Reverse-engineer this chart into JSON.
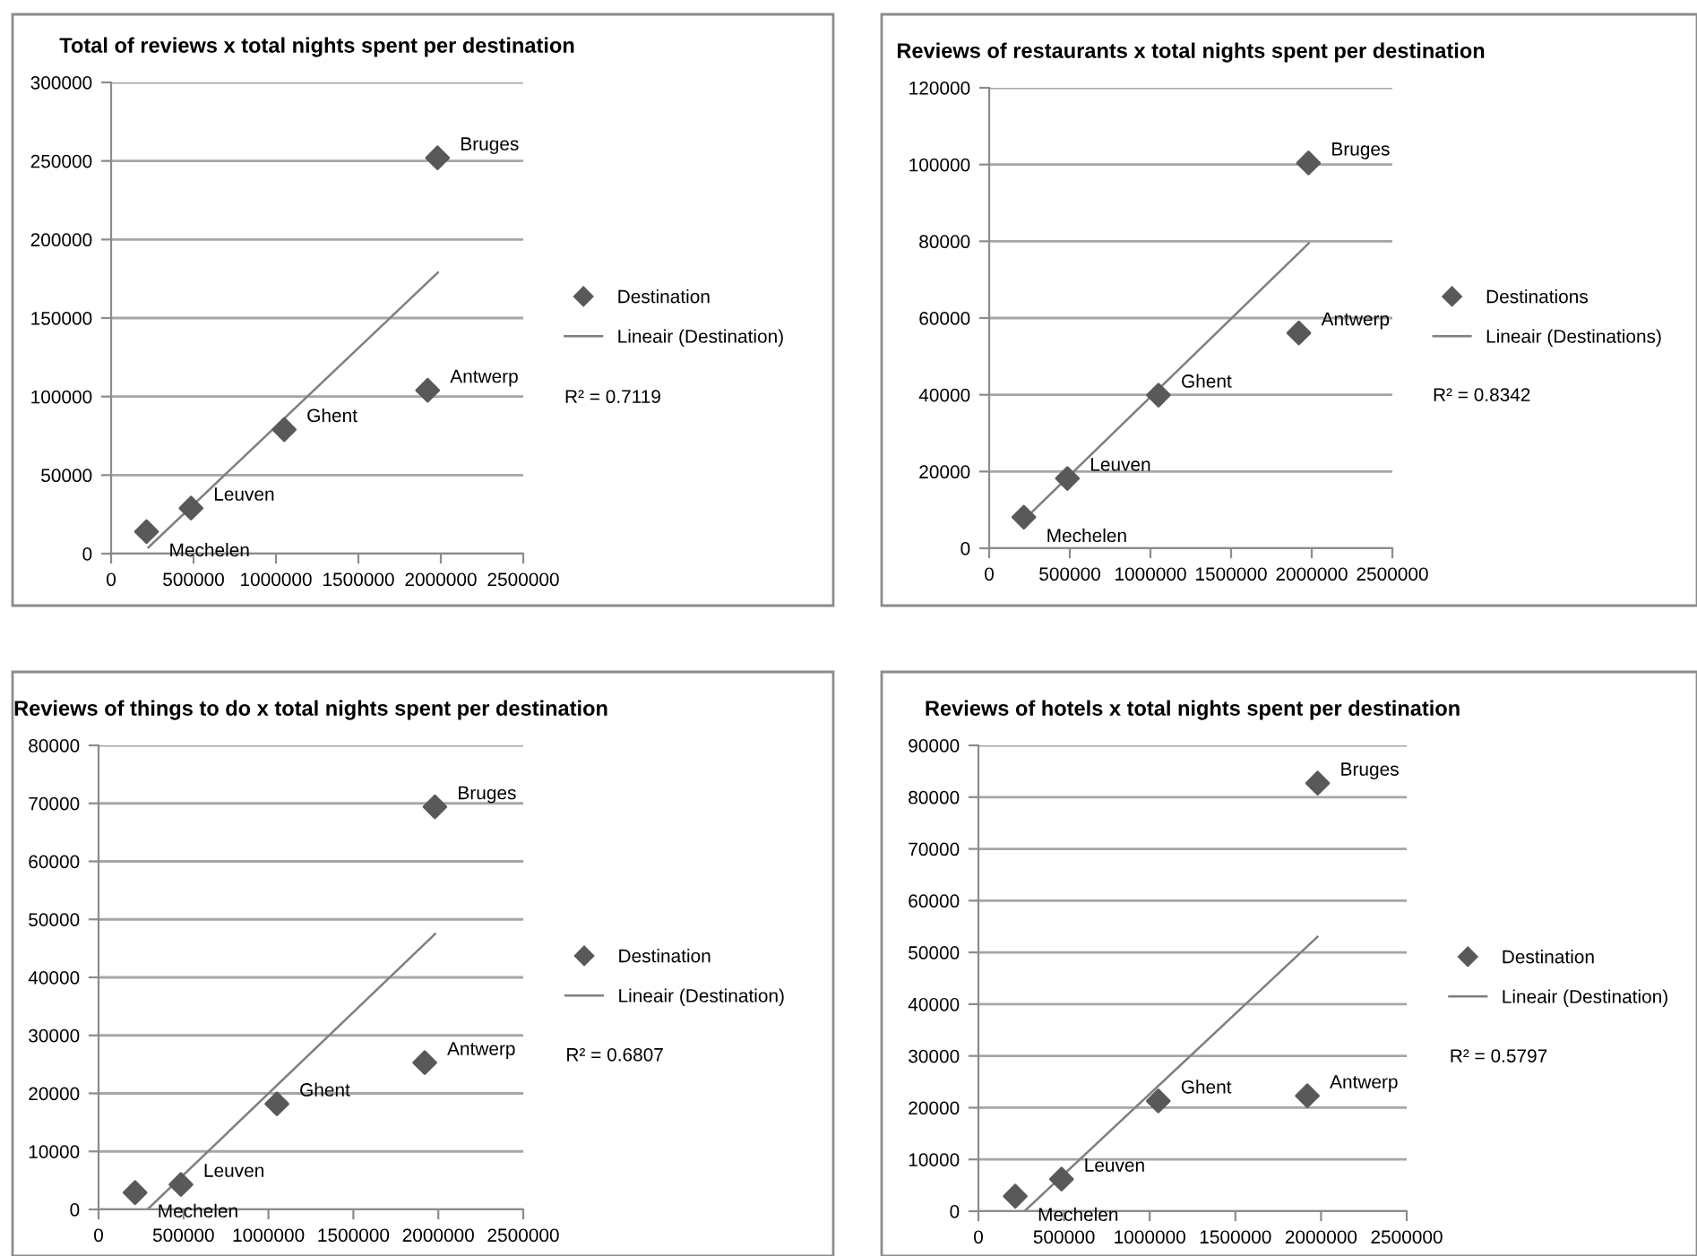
{
  "chart_data": [
    {
      "type": "scatter",
      "title": "Total of reviews x total nights spent per destination",
      "xlim": [
        0,
        2500000
      ],
      "xticks": [
        0,
        500000,
        1000000,
        1500000,
        2000000,
        2500000
      ],
      "ylim": [
        0,
        300000
      ],
      "yticks": [
        0,
        50000,
        100000,
        150000,
        200000,
        250000,
        300000
      ],
      "grid": "y",
      "legend": "right",
      "marker": "diamond",
      "series": [
        {
          "name": "Destination",
          "color": "#595959",
          "x": [
            215000,
            485000,
            1050000,
            1920000,
            1980000
          ],
          "values": [
            14000,
            29000,
            79000,
            104000,
            252000
          ]
        },
        {
          "name": "Lineair (Destination)",
          "type": "line",
          "marker": "none",
          "color": "#7f7f7f",
          "x": [
            227000,
            1982000
          ],
          "values": [
            4000,
            179000
          ]
        }
      ],
      "annotations": [
        {
          "text": "Mechelen",
          "x": 215000,
          "y": 14000
        },
        {
          "text": "Leuven",
          "x": 485000,
          "y": 29000
        },
        {
          "text": "Ghent",
          "x": 1050000,
          "y": 79000
        },
        {
          "text": "Antwerp",
          "x": 1920000,
          "y": 104000
        },
        {
          "text": "Bruges",
          "x": 1980000,
          "y": 252000
        },
        "R² = 0.7119"
      ]
    },
    {
      "type": "scatter",
      "title": "Reviews of restaurants x total nights spent per destination",
      "xlim": [
        0,
        2500000
      ],
      "xticks": [
        0,
        500000,
        1000000,
        1500000,
        2000000,
        2500000
      ],
      "ylim": [
        0,
        120000
      ],
      "yticks": [
        0,
        20000,
        40000,
        60000,
        80000,
        100000,
        120000
      ],
      "grid": "y",
      "legend": "right",
      "marker": "diamond",
      "series": [
        {
          "name": "Destinations",
          "color": "#595959",
          "x": [
            215000,
            485000,
            1050000,
            1920000,
            1980000
          ],
          "values": [
            8100,
            18200,
            39900,
            56100,
            100400
          ]
        },
        {
          "name": "Lineair (Destinations)",
          "type": "line",
          "marker": "none",
          "color": "#7f7f7f",
          "x": [
            252000,
            1982000
          ],
          "values": [
            8900,
            79500
          ]
        }
      ],
      "annotations": [
        {
          "text": "Mechelen",
          "x": 215000,
          "y": 8100
        },
        {
          "text": "Leuven",
          "x": 485000,
          "y": 18200
        },
        {
          "text": "Ghent",
          "x": 1050000,
          "y": 39900
        },
        {
          "text": "Antwerp",
          "x": 1920000,
          "y": 56100
        },
        {
          "text": "Bruges",
          "x": 1980000,
          "y": 100400
        },
        "R² = 0.8342"
      ]
    },
    {
      "type": "scatter",
      "title": "Reviews of things to do x total nights spent per destination",
      "xlim": [
        0,
        2500000
      ],
      "xticks": [
        0,
        500000,
        1000000,
        1500000,
        2000000,
        2500000
      ],
      "ylim": [
        0,
        80000
      ],
      "yticks": [
        0,
        10000,
        20000,
        30000,
        40000,
        50000,
        60000,
        70000,
        80000
      ],
      "grid": "y",
      "legend": "right",
      "marker": "diamond",
      "series": [
        {
          "name": "Destination",
          "color": "#595959",
          "x": [
            215000,
            485000,
            1050000,
            1920000,
            1980000
          ],
          "values": [
            2900,
            4300,
            18200,
            25300,
            69400
          ]
        },
        {
          "name": "Lineair (Destination)",
          "type": "line",
          "marker": "none",
          "color": "#7f7f7f",
          "x": [
            288000,
            1981000
          ],
          "values": [
            0,
            47500
          ]
        }
      ],
      "annotations": [
        {
          "text": "Mechelen",
          "x": 215000,
          "y": 2900
        },
        {
          "text": "Leuven",
          "x": 485000,
          "y": 4300
        },
        {
          "text": "Ghent",
          "x": 1050000,
          "y": 18200
        },
        {
          "text": "Antwerp",
          "x": 1920000,
          "y": 25300
        },
        {
          "text": "Bruges",
          "x": 1980000,
          "y": 69400
        },
        "R² = 0.6807"
      ]
    },
    {
      "type": "scatter",
      "title": "Reviews of hotels x total nights spent per destination",
      "xlim": [
        0,
        2500000
      ],
      "xticks": [
        0,
        500000,
        1000000,
        1500000,
        2000000,
        2500000
      ],
      "ylim": [
        0,
        90000
      ],
      "yticks": [
        0,
        10000,
        20000,
        30000,
        40000,
        50000,
        60000,
        70000,
        80000,
        90000
      ],
      "grid": "y",
      "legend": "right",
      "marker": "diamond",
      "series": [
        {
          "name": "Destination",
          "color": "#595959",
          "x": [
            215000,
            485000,
            1050000,
            1920000,
            1980000
          ],
          "values": [
            2900,
            6200,
            21300,
            22300,
            82700
          ]
        },
        {
          "name": "Lineair (Destination)",
          "type": "line",
          "marker": "none",
          "color": "#7f7f7f",
          "x": [
            269000,
            1979000
          ],
          "values": [
            0,
            53000
          ]
        }
      ],
      "annotations": [
        {
          "text": "Mechelen",
          "x": 215000,
          "y": 2900
        },
        {
          "text": "Leuven",
          "x": 485000,
          "y": 6200
        },
        {
          "text": "Ghent",
          "x": 1050000,
          "y": 21300
        },
        {
          "text": "Antwerp",
          "x": 1920000,
          "y": 22300
        },
        {
          "text": "Bruges",
          "x": 1980000,
          "y": 82700
        },
        "R² = 0.5797"
      ]
    }
  ]
}
